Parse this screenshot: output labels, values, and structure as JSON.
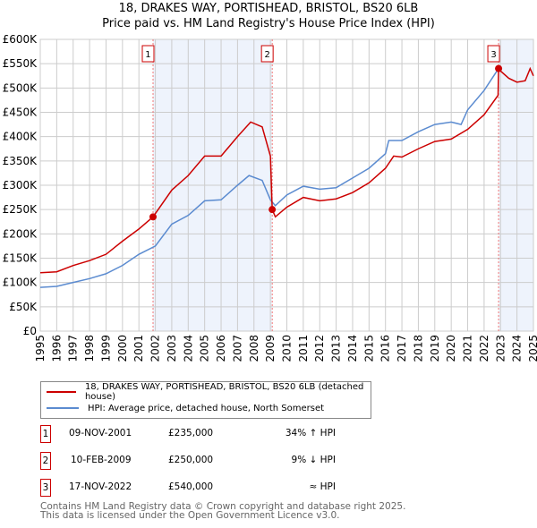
{
  "chart_data": {
    "type": "line",
    "title": "18, DRAKES WAY, PORTISHEAD, BRISTOL, BS20 6LB",
    "subtitle": "Price paid vs. HM Land Registry's House Price Index (HPI)",
    "xlim": [
      1995,
      2025
    ],
    "ylim": [
      0,
      600000
    ],
    "y_ticks": [
      {
        "v": 0,
        "l": "£0"
      },
      {
        "v": 50000,
        "l": "£50K"
      },
      {
        "v": 100000,
        "l": "£100K"
      },
      {
        "v": 150000,
        "l": "£150K"
      },
      {
        "v": 200000,
        "l": "£200K"
      },
      {
        "v": 250000,
        "l": "£250K"
      },
      {
        "v": 300000,
        "l": "£300K"
      },
      {
        "v": 350000,
        "l": "£350K"
      },
      {
        "v": 400000,
        "l": "£400K"
      },
      {
        "v": 450000,
        "l": "£450K"
      },
      {
        "v": 500000,
        "l": "£500K"
      },
      {
        "v": 550000,
        "l": "£550K"
      },
      {
        "v": 600000,
        "l": "£600K"
      }
    ],
    "x_ticks": [
      "1995",
      "1996",
      "1997",
      "1998",
      "1999",
      "2000",
      "2001",
      "2002",
      "2003",
      "2004",
      "2005",
      "2006",
      "2007",
      "2008",
      "2009",
      "2010",
      "2011",
      "2012",
      "2013",
      "2014",
      "2015",
      "2016",
      "2017",
      "2018",
      "2019",
      "2020",
      "2021",
      "2022",
      "2023",
      "2024",
      "2025"
    ],
    "grid": true,
    "shaded_ranges": [
      [
        2001.86,
        2009.11
      ],
      [
        2022.88,
        2025
      ]
    ],
    "series": [
      {
        "name": "18, DRAKES WAY, PORTISHEAD, BRISTOL, BS20 6LB (detached house)",
        "color": "#cc0000",
        "points": [
          [
            1995,
            120000
          ],
          [
            1996,
            122000
          ],
          [
            1997,
            135000
          ],
          [
            1998,
            145000
          ],
          [
            1999,
            158000
          ],
          [
            2000,
            185000
          ],
          [
            2001,
            210000
          ],
          [
            2001.86,
            235000
          ],
          [
            2003,
            290000
          ],
          [
            2004,
            320000
          ],
          [
            2005,
            360000
          ],
          [
            2006,
            360000
          ],
          [
            2007,
            400000
          ],
          [
            2007.8,
            430000
          ],
          [
            2008.5,
            420000
          ],
          [
            2009.0,
            360000
          ],
          [
            2009.11,
            250000
          ],
          [
            2009.3,
            235000
          ],
          [
            2010,
            255000
          ],
          [
            2011,
            275000
          ],
          [
            2012,
            268000
          ],
          [
            2013,
            272000
          ],
          [
            2014,
            285000
          ],
          [
            2015,
            305000
          ],
          [
            2016,
            335000
          ],
          [
            2016.5,
            360000
          ],
          [
            2017,
            358000
          ],
          [
            2018,
            375000
          ],
          [
            2019,
            390000
          ],
          [
            2020,
            395000
          ],
          [
            2021,
            415000
          ],
          [
            2022,
            445000
          ],
          [
            2022.85,
            485000
          ],
          [
            2022.88,
            540000
          ],
          [
            2023,
            535000
          ],
          [
            2023.5,
            520000
          ],
          [
            2024,
            512000
          ],
          [
            2024.5,
            515000
          ],
          [
            2024.8,
            540000
          ],
          [
            2025,
            525000
          ]
        ]
      },
      {
        "name": "HPI: Average price, detached house, North Somerset",
        "color": "#5b8bd0",
        "points": [
          [
            1995,
            90000
          ],
          [
            1996,
            92000
          ],
          [
            1997,
            100000
          ],
          [
            1998,
            108000
          ],
          [
            1999,
            118000
          ],
          [
            2000,
            135000
          ],
          [
            2001,
            158000
          ],
          [
            2002,
            175000
          ],
          [
            2003,
            220000
          ],
          [
            2004,
            238000
          ],
          [
            2005,
            268000
          ],
          [
            2006,
            270000
          ],
          [
            2007,
            300000
          ],
          [
            2007.7,
            320000
          ],
          [
            2008.5,
            310000
          ],
          [
            2009,
            270000
          ],
          [
            2009.3,
            258000
          ],
          [
            2010,
            280000
          ],
          [
            2011,
            298000
          ],
          [
            2012,
            292000
          ],
          [
            2013,
            295000
          ],
          [
            2014,
            315000
          ],
          [
            2015,
            335000
          ],
          [
            2016,
            365000
          ],
          [
            2016.2,
            392000
          ],
          [
            2017,
            392000
          ],
          [
            2018,
            410000
          ],
          [
            2019,
            425000
          ],
          [
            2020,
            430000
          ],
          [
            2020.6,
            425000
          ],
          [
            2021,
            455000
          ],
          [
            2022,
            495000
          ],
          [
            2022.88,
            540000
          ]
        ]
      }
    ],
    "sales": [
      {
        "label": "1",
        "date": "09-NOV-2001",
        "price": "£235,000",
        "hpi": "34% ↑ HPI",
        "x": 2001.86,
        "y": 235000
      },
      {
        "label": "2",
        "date": "10-FEB-2009",
        "price": "£250,000",
        "hpi": "9% ↓ HPI",
        "x": 2009.11,
        "y": 250000
      },
      {
        "label": "3",
        "date": "17-NOV-2022",
        "price": "£540,000",
        "hpi": "≈ HPI",
        "x": 2022.88,
        "y": 540000
      }
    ]
  },
  "footer": {
    "line1": "Contains HM Land Registry data © Crown copyright and database right 2025.",
    "line2": "This data is licensed under the Open Government Licence v3.0."
  }
}
